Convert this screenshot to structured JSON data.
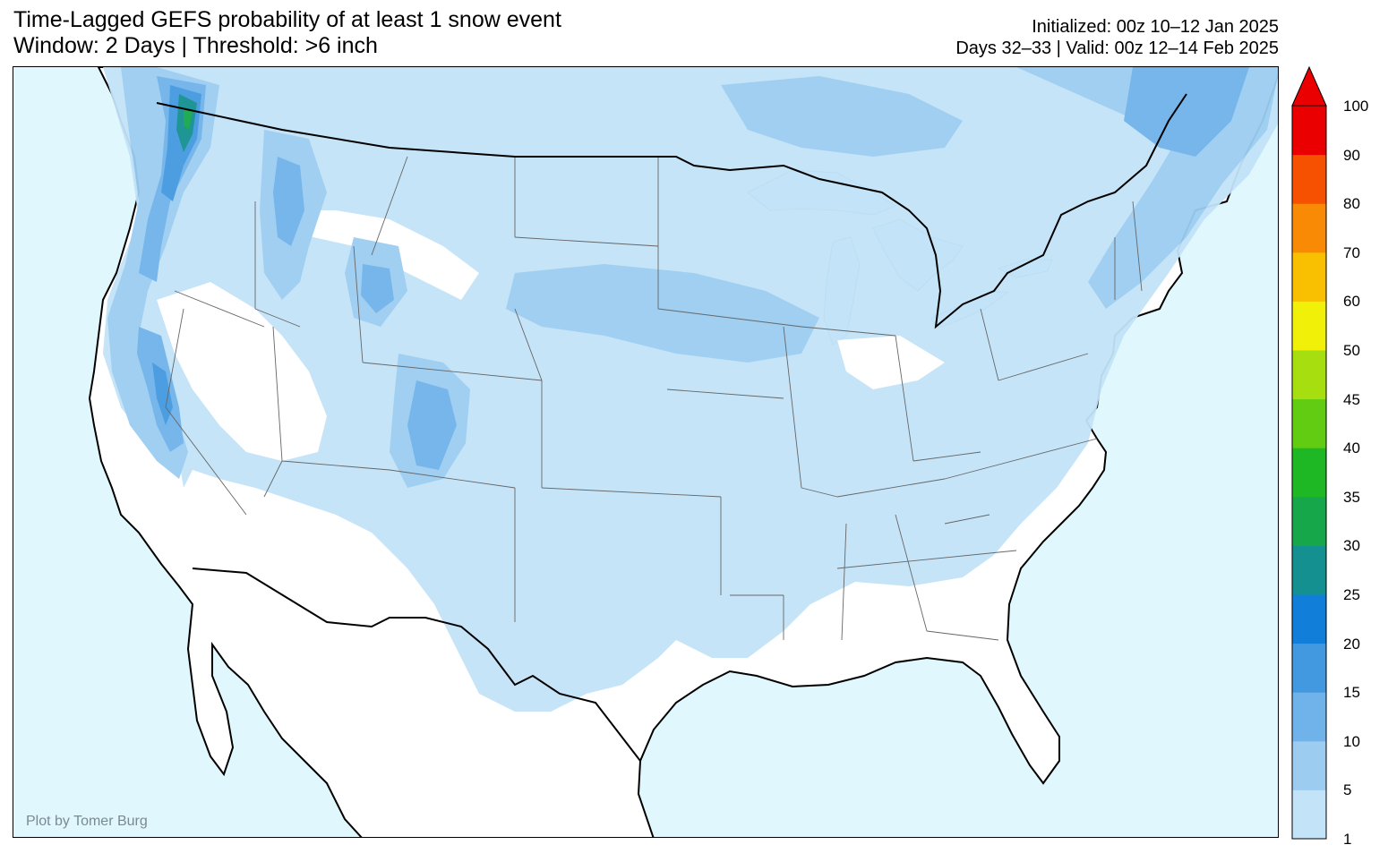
{
  "title": {
    "line1": "Time-Lagged GEFS probability of at least 1 snow event",
    "line2": "Window: 2 Days | Threshold: >6 inch"
  },
  "info": {
    "initialized": "Initialized: 00z 10–12 Jan 2025",
    "valid": "Days 32–33 | Valid: 00z 12–14 Feb 2025"
  },
  "credit": "Plot by Tomer Burg",
  "colorbar": {
    "levels": [
      "1",
      "5",
      "10",
      "15",
      "20",
      "25",
      "30",
      "35",
      "40",
      "45",
      "50",
      "60",
      "70",
      "80",
      "90",
      "100"
    ],
    "colors": [
      "#c2e3f8",
      "#9ccdf1",
      "#6fb3ea",
      "#4399e0",
      "#117fd9",
      "#149090",
      "#16a74b",
      "#1eb825",
      "#62cc13",
      "#a6de0f",
      "#f0f008",
      "#f8c000",
      "#f88a06",
      "#f65100",
      "#ea0000"
    ]
  },
  "map": {
    "colors": {
      "ocean": "#e0f7fd",
      "land": "#ffffff",
      "prob_1": "#c2e3f8",
      "prob_5": "#9ccdf1",
      "prob_10": "#6fb3ea",
      "prob_15": "#4399e0",
      "prob_25": "#149090",
      "prob_30": "#16a74b"
    }
  }
}
